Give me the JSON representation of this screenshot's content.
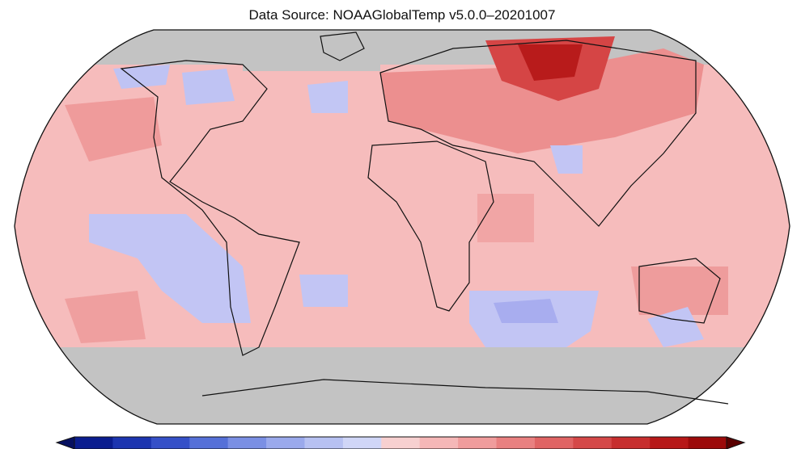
{
  "header": {
    "source": "Data Source: NOAAGlobalTemp v5.0.0–20201007"
  }
}
